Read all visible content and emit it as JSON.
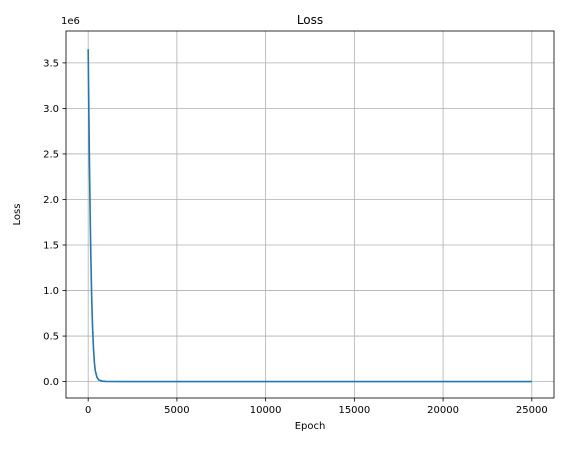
{
  "chart_data": {
    "type": "line",
    "title": "Loss",
    "xlabel": "Epoch",
    "ylabel": "Loss",
    "y_offset_label": "1e6",
    "xlim": [
      -1250,
      26250
    ],
    "ylim": [
      -0.18,
      3.85
    ],
    "xticks": [
      0,
      5000,
      10000,
      15000,
      20000,
      25000
    ],
    "xtick_labels": [
      "0",
      "5000",
      "10000",
      "15000",
      "20000",
      "25000"
    ],
    "yticks": [
      0.0,
      0.5,
      1.0,
      1.5,
      2.0,
      2.5,
      3.0,
      3.5
    ],
    "ytick_labels": [
      "0.0",
      "0.5",
      "1.0",
      "1.5",
      "2.0",
      "2.5",
      "3.0",
      "3.5"
    ],
    "grid": true,
    "line_color": "#1f77b4",
    "grid_color": "#b0b0b0",
    "series": [
      {
        "x": [
          0,
          20,
          40,
          60,
          80,
          100,
          120,
          150,
          200,
          250,
          300,
          350,
          400,
          500,
          600,
          800,
          1000,
          2000,
          5000,
          10000,
          15000,
          20000,
          25000
        ],
        "y": [
          3.65,
          3.28,
          2.92,
          2.58,
          2.27,
          1.99,
          1.73,
          1.37,
          0.9,
          0.58,
          0.36,
          0.21,
          0.12,
          0.045,
          0.018,
          0.005,
          0.002,
          0.0,
          0.0,
          0.0,
          0.0,
          0.0,
          0.0
        ]
      }
    ]
  }
}
